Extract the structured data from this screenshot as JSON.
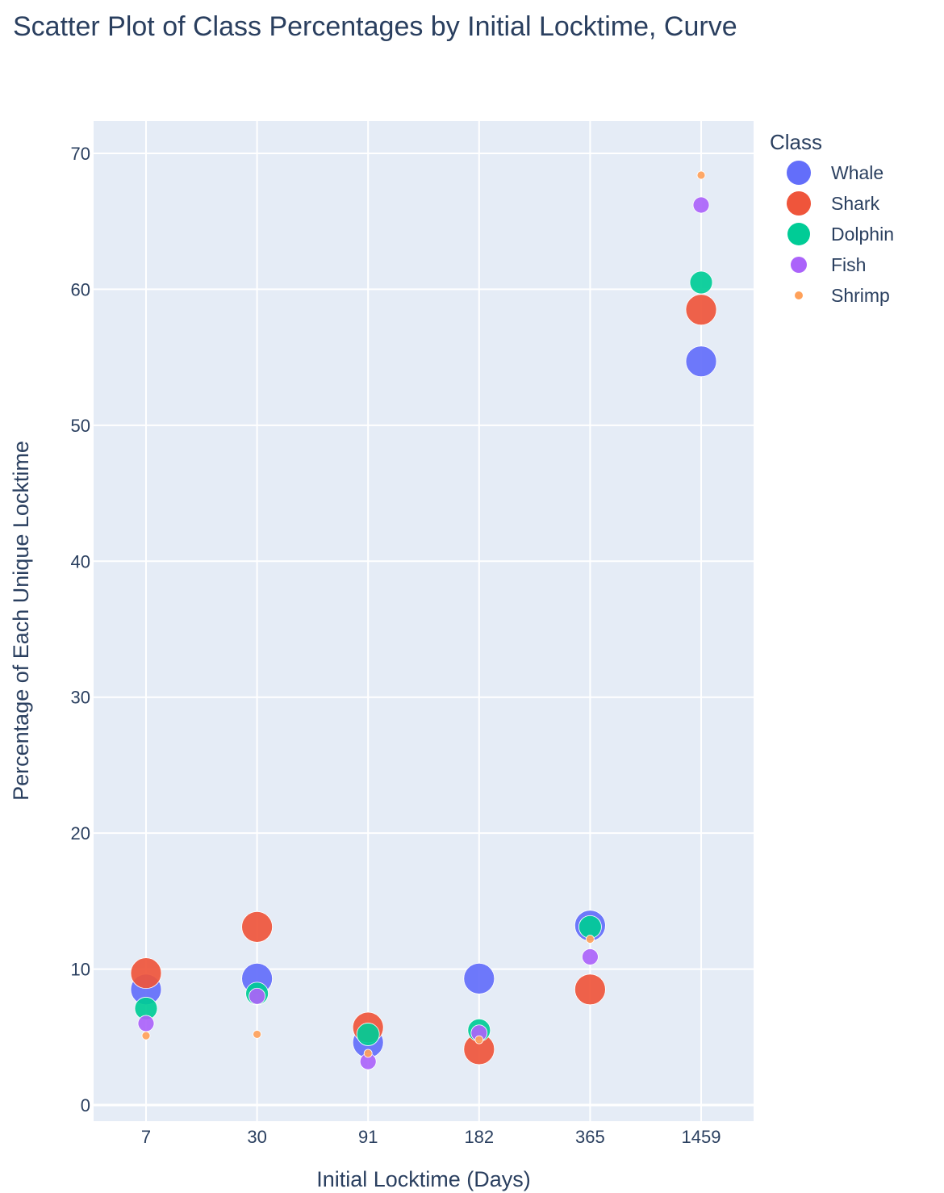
{
  "chart_data": {
    "type": "scatter",
    "title": "Scatter Plot of Class Percentages by Initial Locktime, Curve",
    "xlabel": "Initial Locktime (Days)",
    "ylabel": "Percentage of Each Unique Locktime",
    "categories": [
      "7",
      "30",
      "91",
      "182",
      "365",
      "1459"
    ],
    "ylim": [
      -1.3,
      72.5
    ],
    "yticks": [
      0,
      10,
      20,
      30,
      40,
      50,
      60,
      70
    ],
    "legend_title": "Class",
    "legend_position": "top-right",
    "grid": true,
    "background": "#e5ecf6",
    "series": [
      {
        "name": "Whale",
        "color": "#636efa",
        "marker_size": "large",
        "values": [
          8.5,
          9.3,
          4.6,
          9.3,
          13.2,
          54.7
        ]
      },
      {
        "name": "Shark",
        "color": "#ef553b",
        "marker_size": "large",
        "values": [
          9.7,
          13.1,
          5.7,
          4.1,
          8.5,
          58.5
        ]
      },
      {
        "name": "Dolphin",
        "color": "#00cc96",
        "marker_size": "medium",
        "values": [
          7.1,
          8.2,
          5.2,
          5.5,
          13.1,
          60.5
        ]
      },
      {
        "name": "Fish",
        "color": "#ab63fa",
        "marker_size": "small",
        "values": [
          6.0,
          8.0,
          3.2,
          5.3,
          10.9,
          66.2
        ]
      },
      {
        "name": "Shrimp",
        "color": "#ffa15a",
        "marker_size": "tiny",
        "values": [
          5.1,
          5.2,
          3.8,
          4.8,
          12.2,
          68.4
        ]
      }
    ]
  }
}
